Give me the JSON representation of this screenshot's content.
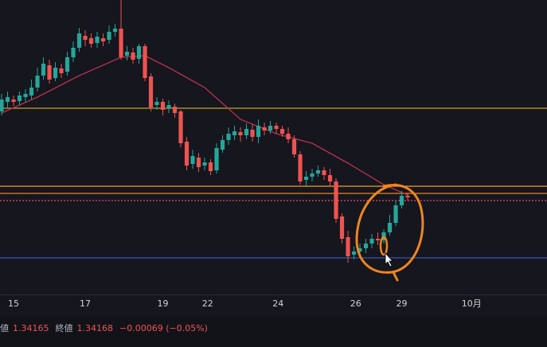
{
  "chart_data": {
    "type": "candlestick",
    "x": [
      0,
      1,
      2,
      3,
      4,
      5,
      6,
      7,
      8,
      9,
      10,
      11,
      12,
      13,
      14,
      15,
      16,
      17,
      18,
      19,
      20,
      21,
      22,
      23,
      24,
      25,
      26,
      27,
      28,
      29,
      30,
      31,
      32,
      33,
      34,
      35,
      36,
      37,
      38,
      39,
      40,
      41,
      42,
      43,
      44,
      45,
      46,
      47,
      48,
      49,
      50,
      51,
      52,
      53,
      54,
      55,
      56,
      57,
      58,
      59,
      60,
      61,
      62,
      63,
      64,
      65,
      66,
      67,
      68
    ],
    "ohlc": [
      [
        1.3522,
        1.3544,
        1.3517,
        1.3537
      ],
      [
        1.3534,
        1.3547,
        1.3527,
        1.354
      ],
      [
        1.3537,
        1.3542,
        1.3529,
        1.3534
      ],
      [
        1.3535,
        1.3547,
        1.353,
        1.3542
      ],
      [
        1.354,
        1.355,
        1.3534,
        1.3544
      ],
      [
        1.3542,
        1.3562,
        1.3537,
        1.3552
      ],
      [
        1.3552,
        1.3577,
        1.3547,
        1.3567
      ],
      [
        1.3567,
        1.359,
        1.3562,
        1.3582
      ],
      [
        1.358,
        1.3587,
        1.3557,
        1.3562
      ],
      [
        1.3564,
        1.3584,
        1.356,
        1.3577
      ],
      [
        1.3576,
        1.3582,
        1.3564,
        1.357
      ],
      [
        1.3572,
        1.3597,
        1.3567,
        1.359
      ],
      [
        1.359,
        1.361,
        1.3584,
        1.3602
      ],
      [
        1.3602,
        1.3627,
        1.3597,
        1.362
      ],
      [
        1.3617,
        1.3624,
        1.3604,
        1.3612
      ],
      [
        1.3614,
        1.362,
        1.3602,
        1.3607
      ],
      [
        1.3608,
        1.3622,
        1.3602,
        1.3616
      ],
      [
        1.3614,
        1.362,
        1.3604,
        1.361
      ],
      [
        1.3612,
        1.363,
        1.3607,
        1.3622
      ],
      [
        1.3622,
        1.3632,
        1.3616,
        1.3626
      ],
      [
        1.3626,
        1.3662,
        1.3587,
        1.359
      ],
      [
        1.3592,
        1.3604,
        1.3586,
        1.3597
      ],
      [
        1.3596,
        1.3602,
        1.3582,
        1.3587
      ],
      [
        1.3588,
        1.3607,
        1.3582,
        1.3604
      ],
      [
        1.3604,
        1.3607,
        1.356,
        1.3564
      ],
      [
        1.3566,
        1.357,
        1.3522,
        1.3527
      ],
      [
        1.353,
        1.354,
        1.3524,
        1.3534
      ],
      [
        1.3534,
        1.3538,
        1.3517,
        1.3524
      ],
      [
        1.3526,
        1.3536,
        1.352,
        1.353
      ],
      [
        1.3528,
        1.3532,
        1.3514,
        1.352
      ],
      [
        1.3522,
        1.3524,
        1.3477,
        1.3482
      ],
      [
        1.3484,
        1.349,
        1.3448,
        1.3454
      ],
      [
        1.3456,
        1.3474,
        1.345,
        1.3466
      ],
      [
        1.3464,
        1.347,
        1.3446,
        1.3452
      ],
      [
        1.3454,
        1.3464,
        1.3448,
        1.3458
      ],
      [
        1.3458,
        1.3462,
        1.3442,
        1.3447
      ],
      [
        1.3448,
        1.3482,
        1.3444,
        1.3476
      ],
      [
        1.3474,
        1.3492,
        1.347,
        1.3486
      ],
      [
        1.3486,
        1.3502,
        1.348,
        1.3494
      ],
      [
        1.3492,
        1.3504,
        1.3486,
        1.3497
      ],
      [
        1.3496,
        1.3502,
        1.3484,
        1.3492
      ],
      [
        1.3492,
        1.3507,
        1.3487,
        1.35
      ],
      [
        1.3499,
        1.3506,
        1.3484,
        1.349
      ],
      [
        1.349,
        1.3512,
        1.3482,
        1.3504
      ],
      [
        1.3502,
        1.3508,
        1.3492,
        1.3498
      ],
      [
        1.3498,
        1.351,
        1.3494,
        1.3504
      ],
      [
        1.3504,
        1.3508,
        1.3494,
        1.35
      ],
      [
        1.35,
        1.3504,
        1.349,
        1.3494
      ],
      [
        1.3494,
        1.3502,
        1.3482,
        1.3487
      ],
      [
        1.3487,
        1.3492,
        1.3464,
        1.3468
      ],
      [
        1.3468,
        1.3472,
        1.343,
        1.3434
      ],
      [
        1.3436,
        1.3447,
        1.3428,
        1.344
      ],
      [
        1.344,
        1.345,
        1.3434,
        1.3444
      ],
      [
        1.3444,
        1.3454,
        1.344,
        1.3448
      ],
      [
        1.3448,
        1.3452,
        1.3436,
        1.3442
      ],
      [
        1.3442,
        1.345,
        1.3428,
        1.3434
      ],
      [
        1.3434,
        1.3438,
        1.3382,
        1.3387
      ],
      [
        1.339,
        1.3394,
        1.3356,
        1.3362
      ],
      [
        1.3364,
        1.3372,
        1.3332,
        1.334
      ],
      [
        1.3342,
        1.3352,
        1.3336,
        1.3346
      ],
      [
        1.3346,
        1.3356,
        1.3342,
        1.335
      ],
      [
        1.335,
        1.3362,
        1.3344,
        1.3356
      ],
      [
        1.3356,
        1.3368,
        1.335,
        1.3362
      ],
      [
        1.3362,
        1.337,
        1.3354,
        1.336
      ],
      [
        1.336,
        1.3374,
        1.3356,
        1.337
      ],
      [
        1.337,
        1.3392,
        1.3366,
        1.3382
      ],
      [
        1.3382,
        1.341,
        1.3378,
        1.3404
      ],
      [
        1.3404,
        1.3422,
        1.34,
        1.3416
      ],
      [
        1.3416,
        1.342,
        1.341,
        1.3414
      ]
    ],
    "up_color": "#26a69a",
    "down_color": "#ef5350",
    "series": [
      {
        "type": "line",
        "color": "#b8324f",
        "x": [
          0,
          6,
          13,
          20,
          24,
          28,
          34,
          40,
          46,
          52,
          58,
          64,
          68
        ],
        "values": [
          1.352,
          1.354,
          1.3567,
          1.359,
          1.3592,
          1.3577,
          1.3552,
          1.3512,
          1.3494,
          1.3482,
          1.3457,
          1.343,
          1.3417
        ]
      }
    ],
    "hlines": [
      {
        "value": 1.3526,
        "color": "#c9a227"
      },
      {
        "value": 1.3428,
        "color": "#f0a030"
      },
      {
        "value": 1.3419,
        "color": "#e8832a"
      },
      {
        "value": 1.341,
        "color": "#e0506a",
        "dashed": true
      },
      {
        "value": 1.3338,
        "color": "#3a55b0"
      }
    ],
    "xlim": [
      -0.27,
      91.33
    ],
    "ylim": [
      1.3292,
      1.3662
    ],
    "xticks": [
      {
        "value": 2,
        "label": "15"
      },
      {
        "value": 14,
        "label": "17"
      },
      {
        "value": 27,
        "label": "19"
      },
      {
        "value": 34.5,
        "label": "22"
      },
      {
        "value": 46.3,
        "label": "24"
      },
      {
        "value": 59.3,
        "label": "26"
      },
      {
        "value": 67,
        "label": "29"
      },
      {
        "value": 78.7,
        "label": "10月"
      }
    ]
  },
  "status": [
    {
      "label": "値",
      "value": "1.34165"
    },
    {
      "label": "終値",
      "value": "1.34168"
    },
    {
      "label": null,
      "value": "−0.00069 (−0.05%)"
    }
  ]
}
